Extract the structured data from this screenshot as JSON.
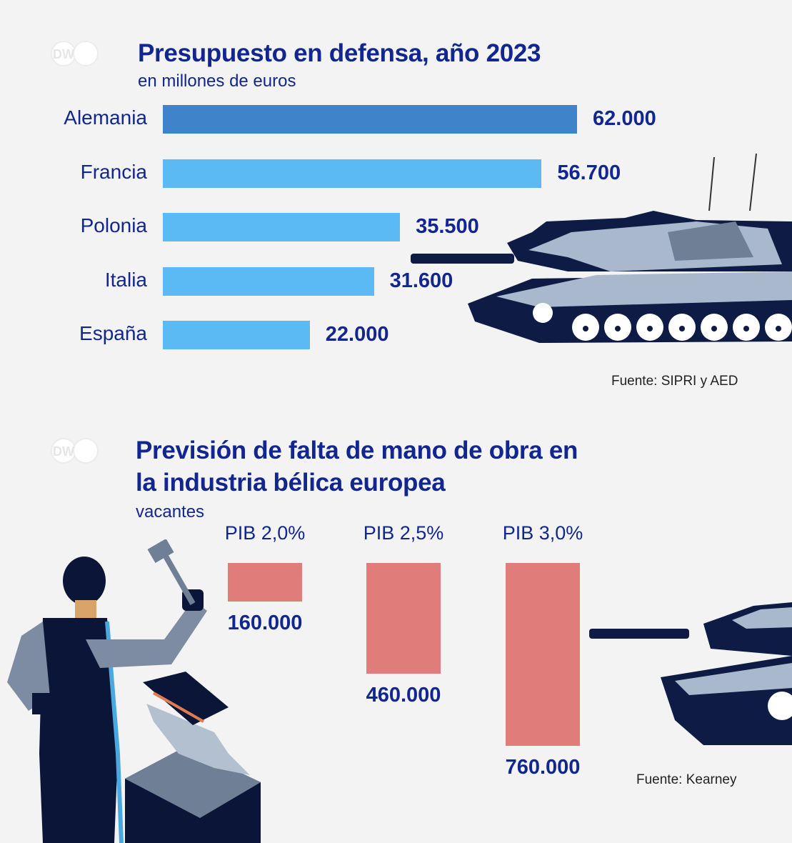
{
  "logo": {
    "text": "DW"
  },
  "chart_data": [
    {
      "type": "bar",
      "orientation": "horizontal",
      "title": "Presupuesto en defensa, año 2023",
      "subtitle": "en millones de euros",
      "categories": [
        "Alemania",
        "Francia",
        "Polonia",
        "Italia",
        "España"
      ],
      "values": [
        62000,
        56700,
        35500,
        31600,
        22000
      ],
      "value_labels": [
        "62.000",
        "56.700",
        "35.500",
        "31.600",
        "22.000"
      ],
      "highlight_color": "#3f83cb",
      "bar_color": "#5bbaf3",
      "source": "Fuente: SIPRI y AED"
    },
    {
      "type": "bar",
      "orientation": "vertical-hanging",
      "title_line1": "Previsión de falta de mano de obra en",
      "title_line2": "la industria bélica europea",
      "subtitle": "vacantes",
      "categories": [
        "PIB 2,0%",
        "PIB 2,5%",
        "PIB 3,0%"
      ],
      "values": [
        160000,
        460000,
        760000
      ],
      "value_labels": [
        "160.000",
        "460.000",
        "760.000"
      ],
      "bar_color": "#e07c7a",
      "source": "Fuente: Kearney"
    }
  ]
}
